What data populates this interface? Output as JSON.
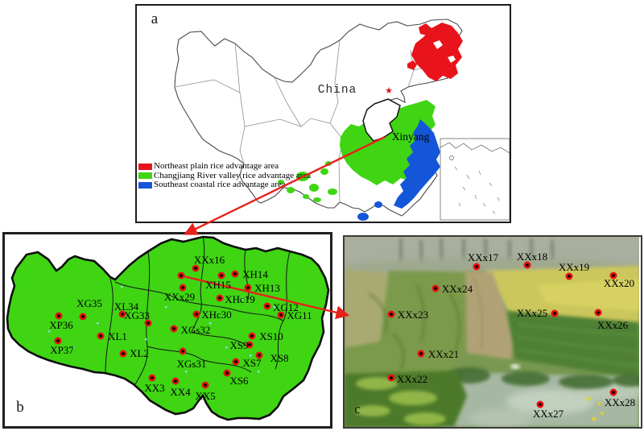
{
  "figure_labels": {
    "panel_a": "a",
    "panel_b": "b",
    "panel_c": "c"
  },
  "panel_a": {
    "country_label": "China",
    "city_label": "Xinyang",
    "legend": [
      {
        "color": "#e8131b",
        "label": "Northeast plain rice advantage area"
      },
      {
        "color": "#3fd513",
        "label": "Changjiang River valley rice advantage area"
      },
      {
        "color": "#1456d8",
        "label": "Southeast coastal rice advantage area"
      }
    ]
  },
  "panel_b": {
    "map_fill": "#3fd513",
    "sites": [
      {
        "label": "XXx16",
        "dot": [
          243,
          333
        ],
        "text": [
          260,
          323
        ]
      },
      {
        "label": "",
        "dot": [
          225,
          342
        ],
        "text": [
          0,
          0
        ]
      },
      {
        "label": "XH14",
        "dot": [
          292,
          340
        ],
        "text": [
          317,
          341
        ]
      },
      {
        "label": "XH15",
        "dot": [
          275,
          342
        ],
        "text": [
          271,
          354
        ]
      },
      {
        "label": "XH13",
        "dot": [
          308,
          357
        ],
        "text": [
          332,
          358
        ]
      },
      {
        "label": "XXx29",
        "dot": [
          227,
          357
        ],
        "text": [
          223,
          369
        ]
      },
      {
        "label": "XHc19",
        "dot": [
          273,
          370
        ],
        "text": [
          298,
          372
        ]
      },
      {
        "label": "XG12",
        "dot": [
          332,
          380
        ],
        "text": [
          355,
          382
        ]
      },
      {
        "label": "XG11",
        "dot": [
          349,
          391
        ],
        "text": [
          372,
          392
        ]
      },
      {
        "label": "XHc30",
        "dot": [
          244,
          390
        ],
        "text": [
          269,
          391
        ]
      },
      {
        "label": "XG33",
        "dot": [
          184,
          401
        ],
        "text": [
          170,
          392
        ]
      },
      {
        "label": "XGs32",
        "dot": [
          216,
          408
        ],
        "text": [
          243,
          410
        ]
      },
      {
        "label": "XG35",
        "dot": [
          103,
          393
        ],
        "text": [
          111,
          377
        ]
      },
      {
        "label": "XL34",
        "dot": [
          152,
          390
        ],
        "text": [
          157,
          381
        ]
      },
      {
        "label": "XP36",
        "dot": [
          73,
          392
        ],
        "text": [
          76,
          404
        ]
      },
      {
        "label": "XL1",
        "dot": [
          125,
          417
        ],
        "text": [
          146,
          418
        ]
      },
      {
        "label": "XP37",
        "dot": [
          72,
          423
        ],
        "text": [
          77,
          435
        ]
      },
      {
        "label": "XL2",
        "dot": [
          153,
          439
        ],
        "text": [
          173,
          439
        ]
      },
      {
        "label": "XGs31",
        "dot": [
          227,
          436
        ],
        "text": [
          238,
          452
        ]
      },
      {
        "label": "XS10",
        "dot": [
          313,
          417
        ],
        "text": [
          337,
          418
        ]
      },
      {
        "label": "XS9",
        "dot": [
          310,
          428
        ],
        "text": [
          297,
          429
        ]
      },
      {
        "label": "XS8",
        "dot": [
          322,
          441
        ],
        "text": [
          347,
          445
        ]
      },
      {
        "label": "XS7",
        "dot": [
          293,
          449
        ],
        "text": [
          313,
          451
        ]
      },
      {
        "label": "XS6",
        "dot": [
          282,
          463
        ],
        "text": [
          297,
          473
        ]
      },
      {
        "label": "XX3",
        "dot": [
          189,
          469
        ],
        "text": [
          192,
          482
        ]
      },
      {
        "label": "XX4",
        "dot": [
          218,
          473
        ],
        "text": [
          224,
          487
        ]
      },
      {
        "label": "XX5",
        "dot": [
          255,
          478
        ],
        "text": [
          255,
          492
        ]
      }
    ]
  },
  "panel_c": {
    "sites": [
      {
        "label": "XXx17",
        "dot": [
          592,
          331
        ],
        "text": [
          600,
          320
        ]
      },
      {
        "label": "XXx18",
        "dot": [
          655,
          329
        ],
        "text": [
          661,
          319
        ]
      },
      {
        "label": "XXx19",
        "dot": [
          707,
          343
        ],
        "text": [
          713,
          332
        ]
      },
      {
        "label": "XXx20",
        "dot": [
          762,
          342
        ],
        "text": [
          769,
          352
        ]
      },
      {
        "label": "XXx24",
        "dot": [
          541,
          358
        ],
        "text": [
          568,
          359
        ]
      },
      {
        "label": "XXx23",
        "dot": [
          486,
          390
        ],
        "text": [
          513,
          391
        ]
      },
      {
        "label": "XXx25",
        "dot": [
          689,
          389
        ],
        "text": [
          661,
          389
        ]
      },
      {
        "label": "XXx26",
        "dot": [
          743,
          388
        ],
        "text": [
          761,
          404
        ]
      },
      {
        "label": "XXx21",
        "dot": [
          523,
          439
        ],
        "text": [
          551,
          440
        ]
      },
      {
        "label": "XXx22",
        "dot": [
          486,
          469
        ],
        "text": [
          512,
          471
        ]
      },
      {
        "label": "XXx27",
        "dot": [
          671,
          502
        ],
        "text": [
          681,
          514
        ]
      },
      {
        "label": "XXx28",
        "dot": [
          762,
          487
        ],
        "text": [
          770,
          500
        ]
      }
    ]
  },
  "arrows": [
    {
      "from": [
        478,
        170
      ],
      "to": [
        231,
        290
      ]
    },
    {
      "from": [
        228,
        343
      ],
      "to": [
        431,
        391
      ]
    }
  ],
  "colors": {
    "arrow_red": "#e6231b",
    "marker_red": "#e90f0f"
  }
}
